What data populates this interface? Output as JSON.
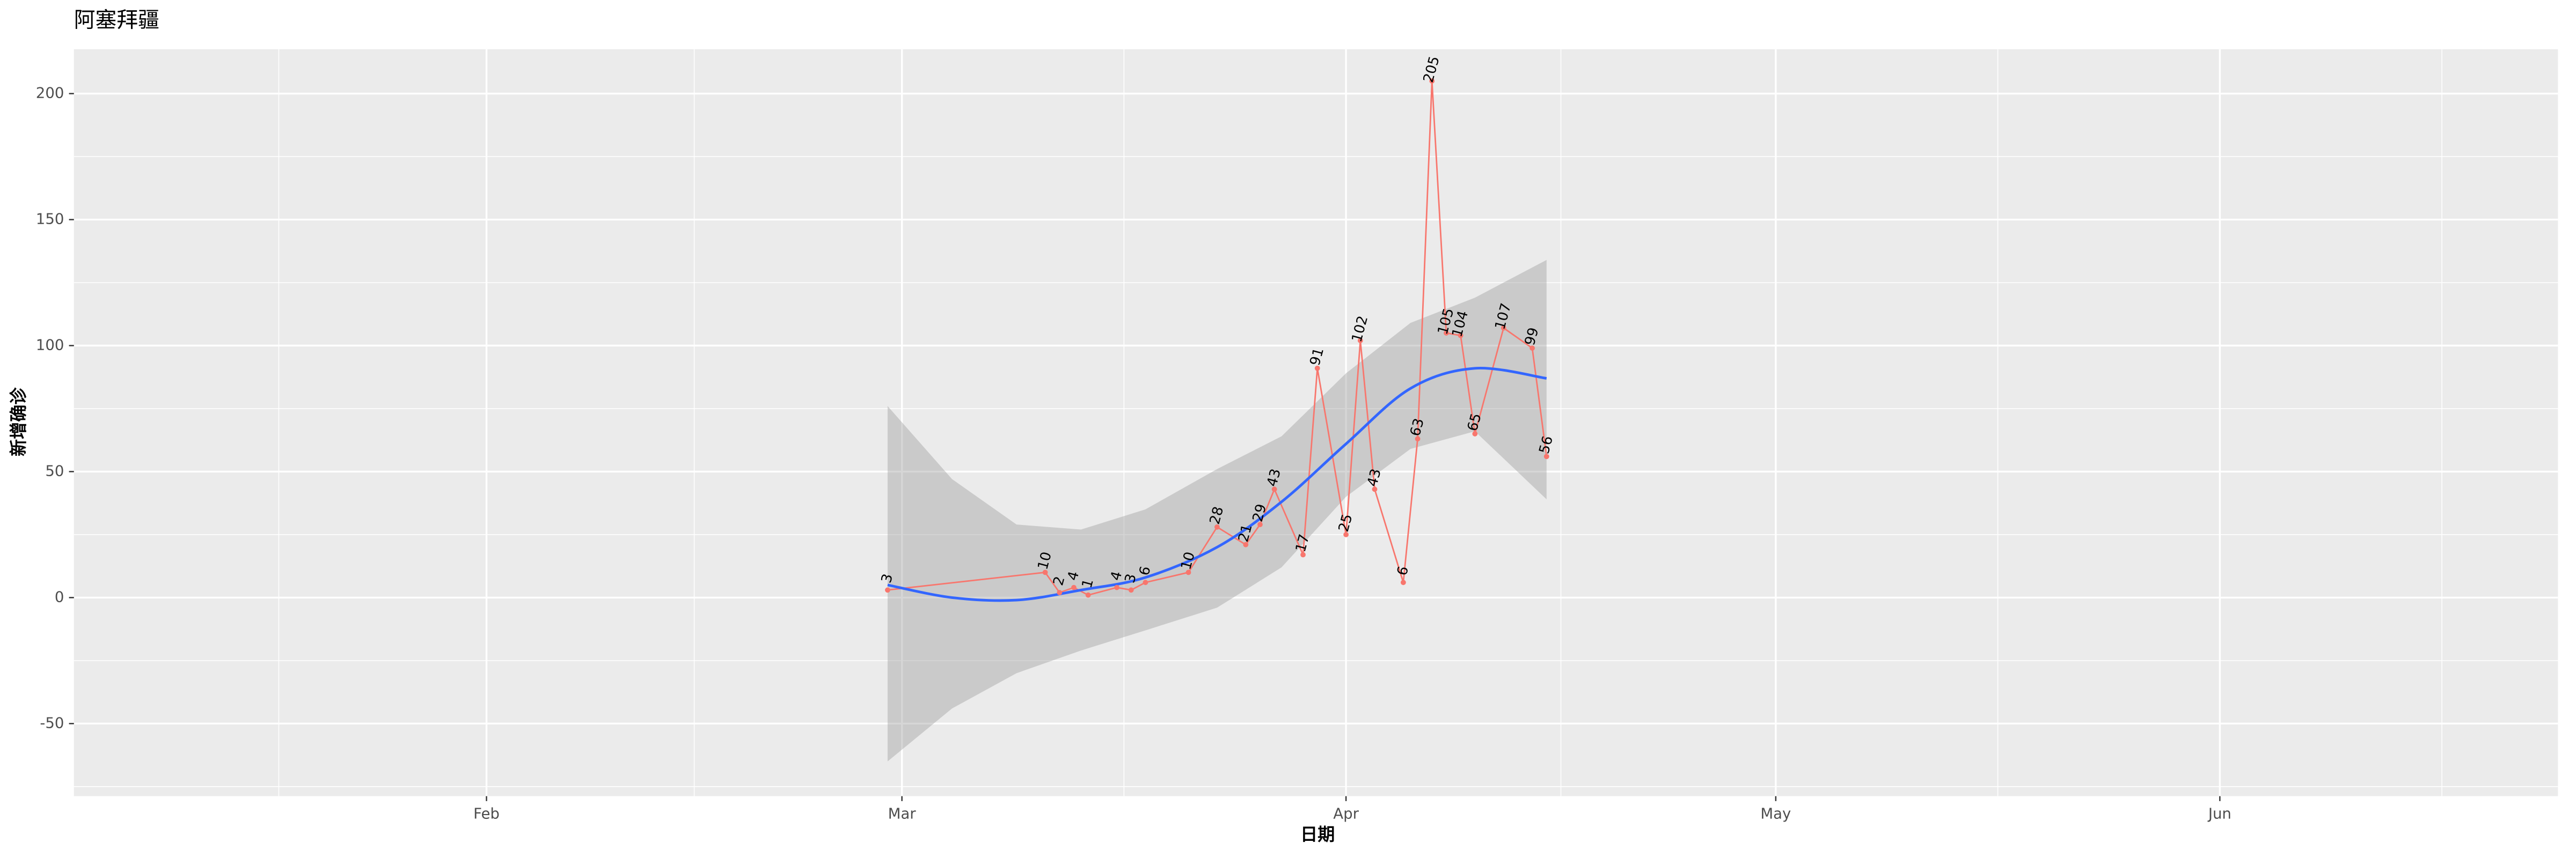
{
  "chart_data": {
    "type": "line",
    "title": "阿塞拜疆",
    "x_label": "日期",
    "y_label": "新增确诊",
    "x": [
      60,
      71,
      72,
      73,
      74,
      76,
      77,
      78,
      81,
      83,
      85,
      86,
      87,
      89,
      90,
      92,
      93,
      94,
      96,
      97,
      98,
      99,
      100,
      101,
      103,
      105,
      106
    ],
    "values": [
      3,
      10,
      2,
      4,
      1,
      4,
      3,
      6,
      10,
      28,
      21,
      29,
      43,
      17,
      91,
      25,
      102,
      43,
      6,
      63,
      205,
      105,
      104,
      65,
      107,
      99,
      56
    ],
    "color": "#f8766d",
    "smooth": {
      "x": [
        60,
        64.5,
        69,
        73.5,
        78,
        83,
        87.5,
        92,
        96.5,
        101,
        106
      ],
      "values": [
        5,
        0,
        -1,
        3,
        8,
        20,
        38,
        61,
        83,
        91,
        87
      ],
      "lower": [
        -65,
        -44,
        -30,
        -21,
        -13,
        -4,
        12,
        40,
        59,
        66,
        39
      ],
      "upper": [
        76,
        47,
        29,
        27,
        35,
        51,
        64,
        89,
        109,
        119,
        134
      ],
      "color": "#3366ff",
      "fill": "#999999"
    },
    "xlim": [
      3.2,
      176.6
    ],
    "xticks": [
      {
        "value": 32,
        "label": "Feb"
      },
      {
        "value": 61,
        "label": "Mar"
      },
      {
        "value": 92,
        "label": "Apr"
      },
      {
        "value": 122,
        "label": "May"
      },
      {
        "value": 153,
        "label": "Jun"
      }
    ],
    "ylim": [
      -78.8,
      217.6
    ],
    "yticks": [
      -50,
      0,
      50,
      100,
      150,
      200
    ],
    "grid": true
  }
}
